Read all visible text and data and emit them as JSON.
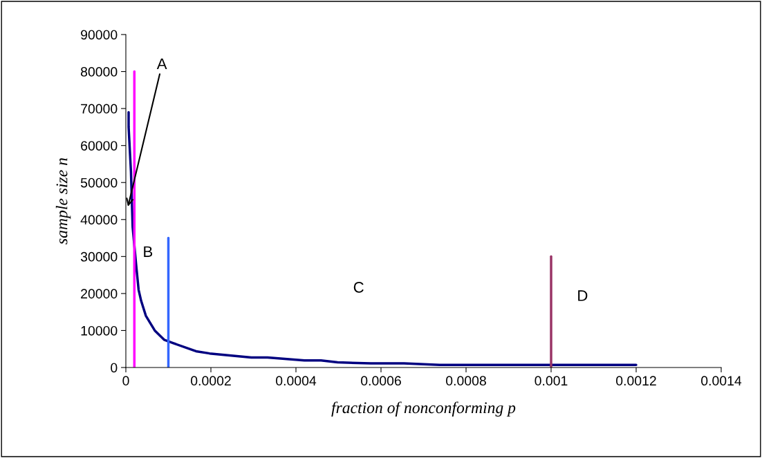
{
  "chart_data": {
    "type": "line",
    "xlabel": "fraction of nonconforming p",
    "ylabel": "sample size n",
    "series": [
      {
        "color": "#000080",
        "x": [
          6.5e-06,
          6.5e-06,
          1.2e-05,
          1.6e-05,
          2.4e-05,
          3e-05,
          3.6e-05,
          4.7e-05,
          6.8e-05,
          9e-05,
          0.000111,
          0.000165,
          0.000197,
          0.000295,
          0.000333,
          0.00042,
          0.000459,
          0.000498,
          0.000576,
          0.000654,
          0.000738,
          0.0012
        ],
        "values": [
          69000,
          65000,
          53000,
          38000,
          28000,
          21000,
          18000,
          14000,
          10000,
          7500,
          6600,
          4400,
          3800,
          2700,
          2700,
          1900,
          1900,
          1400,
          1100,
          1100,
          700,
          700
        ]
      },
      {
        "color": "#ff00ff",
        "x": [
          2e-05,
          2e-05
        ],
        "values": [
          0,
          80000
        ]
      },
      {
        "color": "#3366ff",
        "x": [
          0.0001,
          0.0001
        ],
        "values": [
          0,
          35000
        ]
      },
      {
        "color": "#993366",
        "x": [
          0.001,
          0.001
        ],
        "values": [
          0,
          30000
        ]
      }
    ],
    "annotations": [
      {
        "text": "A",
        "x": 5e-06,
        "y": 43500
      },
      "B",
      "C",
      "D"
    ],
    "xlim": [
      0,
      0.0014
    ],
    "xticks": [
      0,
      0.0002,
      0.0004,
      0.0006,
      0.0008,
      0.001,
      0.0012,
      0.0014
    ],
    "ylim": [
      0,
      90000
    ],
    "yticks": [
      0,
      10000,
      20000,
      30000,
      40000,
      50000,
      60000,
      70000,
      80000,
      90000
    ],
    "grid": false
  }
}
